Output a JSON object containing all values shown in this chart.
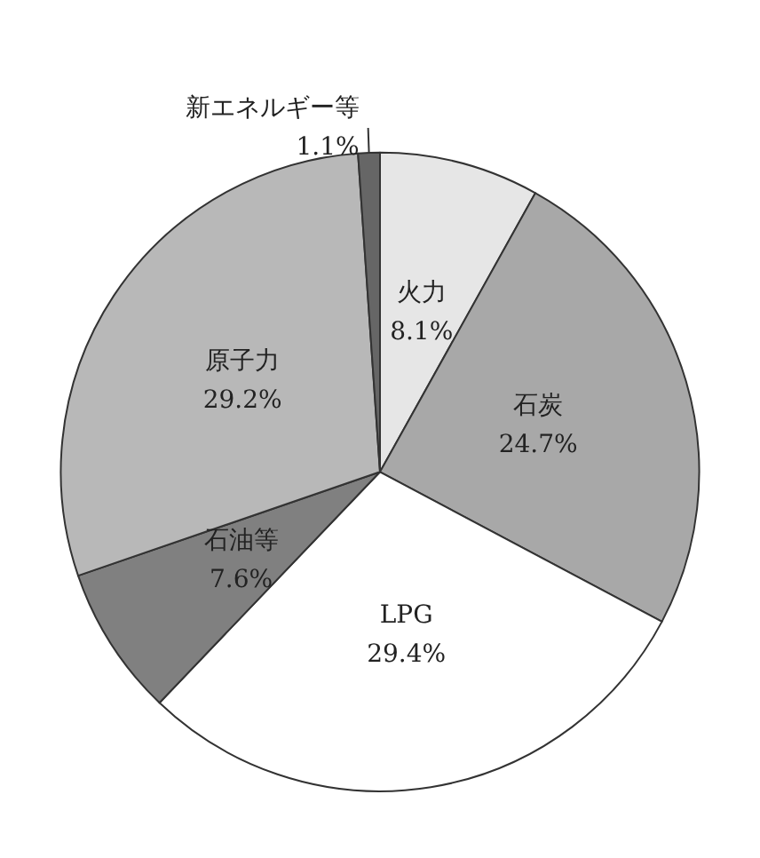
{
  "chart_data": {
    "type": "pie",
    "categories": [
      "火力",
      "石炭",
      "LPG",
      "石油等",
      "原子力",
      "新エネルギー等"
    ],
    "values": [
      8.1,
      24.7,
      29.4,
      7.6,
      29.2,
      1.1
    ],
    "colors": [
      "#e6e6e6",
      "#a8a8a8",
      "#ffffff",
      "#808080",
      "#b8b8b8",
      "#666666"
    ],
    "value_labels": [
      "8.1%",
      "24.7%",
      "29.4%",
      "7.6%",
      "29.2%",
      "1.1%"
    ],
    "legend": false
  }
}
